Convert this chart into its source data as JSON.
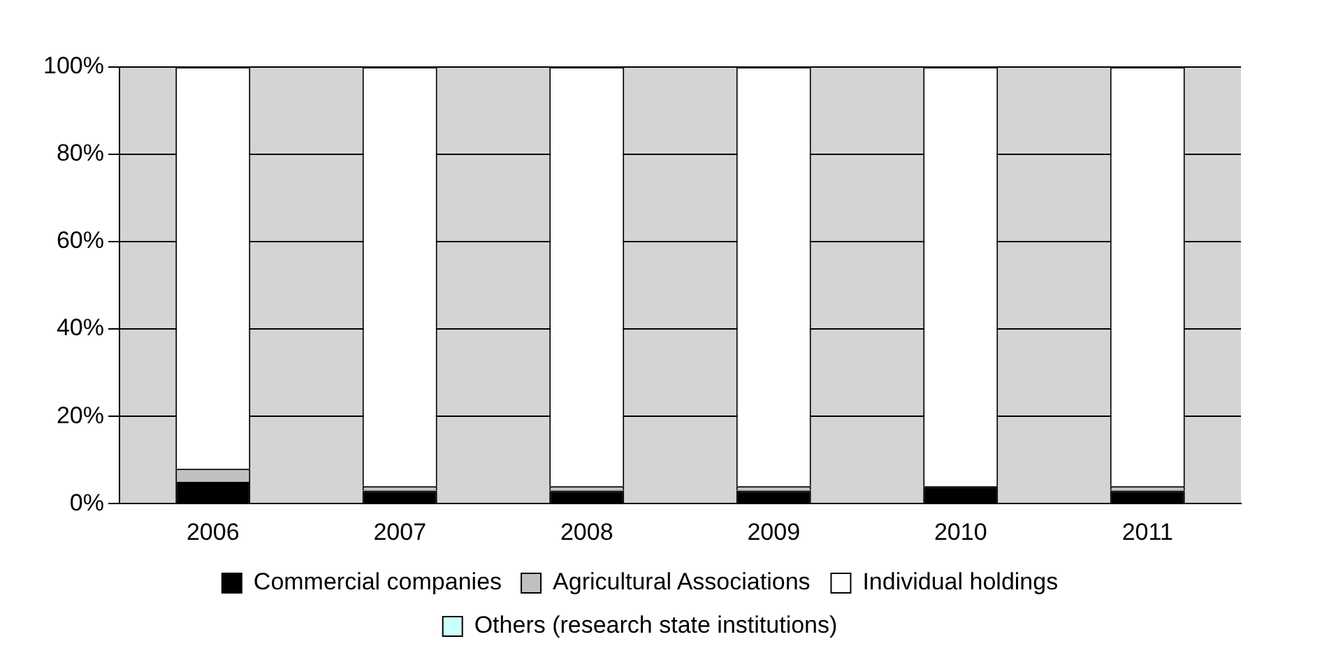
{
  "chart_data": {
    "type": "bar",
    "stacked": true,
    "categories": [
      "2006",
      "2007",
      "2008",
      "2009",
      "2010",
      "2011"
    ],
    "series": [
      {
        "name": "Commercial companies",
        "color": "#000000",
        "values": [
          5,
          3,
          3,
          3,
          4,
          3
        ]
      },
      {
        "name": "Agricultural Associations",
        "color": "#c0c0c0",
        "values": [
          3,
          1,
          1,
          1,
          0,
          1
        ]
      },
      {
        "name": "Individual holdings",
        "color": "#ffffff",
        "values": [
          92,
          96,
          96,
          96,
          96,
          96
        ]
      },
      {
        "name": "Others (research state institutions)",
        "color": "#ccffff",
        "values": [
          0,
          0,
          0,
          0,
          0,
          0
        ]
      }
    ],
    "ylim": [
      0,
      100
    ],
    "yticks": [
      {
        "value": 0,
        "label": "0%"
      },
      {
        "value": 20,
        "label": "20%"
      },
      {
        "value": 40,
        "label": "40%"
      },
      {
        "value": 60,
        "label": "60%"
      },
      {
        "value": 80,
        "label": "80%"
      },
      {
        "value": 100,
        "label": "100%"
      }
    ],
    "grid": "y",
    "legend": "bottom"
  }
}
